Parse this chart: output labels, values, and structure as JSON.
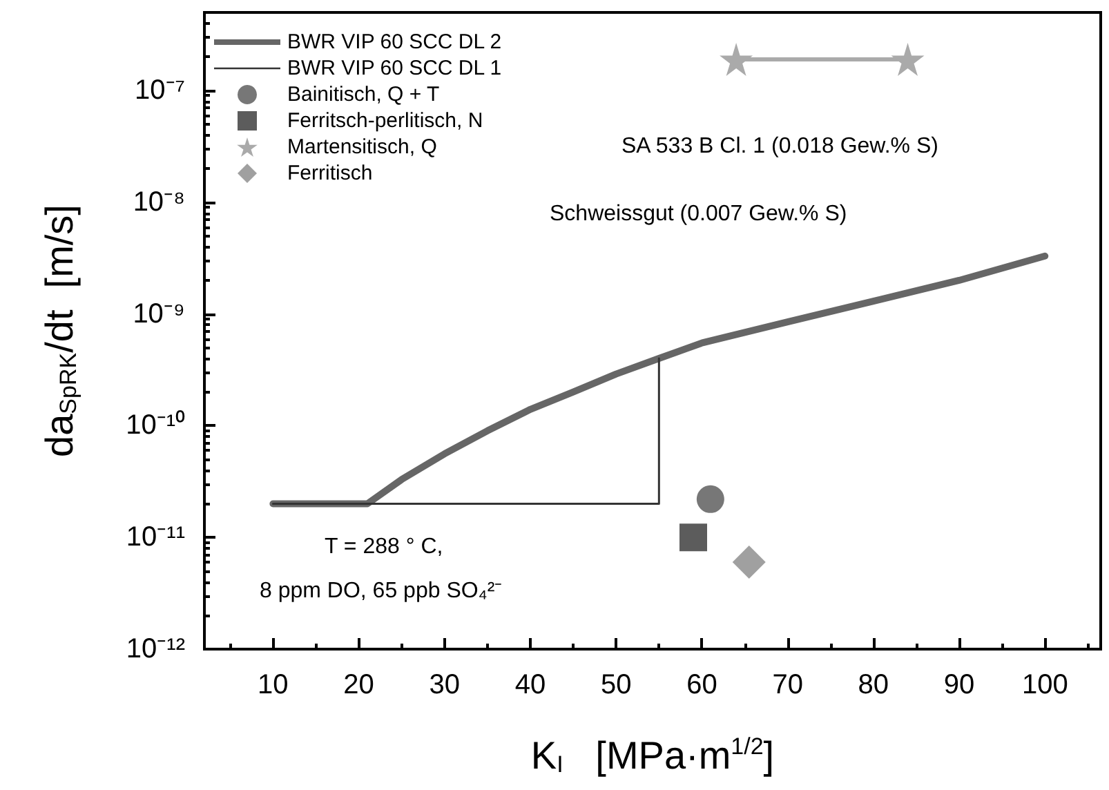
{
  "chart_data": {
    "type": "line",
    "xlabel": "K$_{I}$   [MPa·m$^{1/2}$]",
    "ylabel": "da$_{SpRK}$/dt  [m/s]",
    "log": "y",
    "grid": false,
    "legend": "top left",
    "line_style": "solid",
    "marker": "none",
    "xlim": [
      2,
      106.5
    ],
    "xticks": [
      10,
      20,
      30,
      40,
      50,
      60,
      70,
      80,
      90,
      100
    ],
    "ylim": [
      1e-12,
      5e-07
    ],
    "yticks": [
      {
        "value": 1e-12,
        "label": "10⁻¹²"
      },
      {
        "value": 1e-11,
        "label": "10⁻¹¹"
      },
      {
        "value": 1e-10,
        "label": "10⁻¹⁰"
      },
      {
        "value": 1e-09,
        "label": "10⁻⁹"
      },
      {
        "value": 1e-08,
        "label": "10⁻⁸"
      },
      {
        "value": 1e-07,
        "label": "10⁻⁷"
      }
    ],
    "series": [
      {
        "name": "BWR VIP 60 SCC DL 2",
        "color": "#666666",
        "x": [
          10,
          21,
          25,
          30,
          35,
          40,
          45,
          50,
          55,
          60,
          70,
          80,
          90,
          100
        ],
        "values": [
          2e-11,
          2e-11,
          3.3e-11,
          5.6e-11,
          9e-11,
          1.4e-10,
          2e-10,
          2.9e-10,
          4e-10,
          5.5e-10,
          8.5e-10,
          1.3e-09,
          2e-09,
          3.3e-09
        ]
      },
      {
        "name": "BWR VIP 60 SCC DL 1",
        "color": "#333333",
        "x": [
          10,
          55,
          55
        ],
        "values": [
          2e-11,
          2e-11,
          4e-10
        ]
      },
      {
        "name": "Bainitisch, Q + T",
        "type": "scatter",
        "marker": "circle",
        "color": "#555555",
        "x": [
          61
        ],
        "values": [
          2.2e-11
        ]
      },
      {
        "name": "Ferritsch-perlitisch, N",
        "type": "scatter",
        "marker": "square",
        "color": "#333333",
        "x": [
          59
        ],
        "values": [
          1e-11
        ]
      },
      {
        "name": "Martensitisch, Q",
        "marker": "star",
        "color": "#aaaaaa",
        "x": [
          64,
          84
        ],
        "values": [
          1.9e-07,
          1.9e-07
        ]
      },
      {
        "name": "Ferritisch",
        "type": "scatter",
        "marker": "diamond",
        "color": "#888888",
        "x": [
          65.5
        ],
        "values": [
          6e-12
        ]
      }
    ],
    "annotations": [
      "SA 533 B Cl. 1 (0.018 Gew.% S)",
      "Schweissgut (0.007 Gew.% S)",
      "T = 288 ° C,",
      "8 ppm DO, 65 ppb SO₄²⁻"
    ]
  }
}
